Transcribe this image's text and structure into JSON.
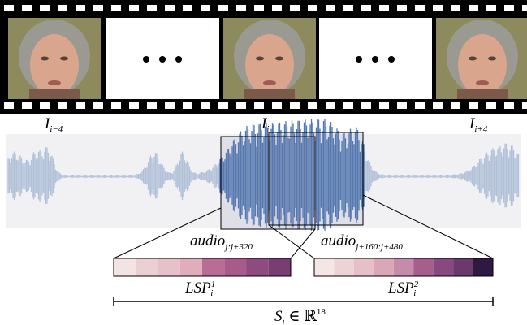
{
  "frames": [
    {
      "base": "I",
      "sub": "i−4"
    },
    {
      "base": "I",
      "sub": "i"
    },
    {
      "base": "I",
      "sub": "i+4"
    }
  ],
  "audio_windows": [
    {
      "base": "audio",
      "sub": "j:j+320"
    },
    {
      "base": "audio",
      "sub": "j+160:j+480"
    }
  ],
  "lsp": [
    {
      "base": "LSP",
      "sub": "i",
      "sup": "1"
    },
    {
      "base": "LSP",
      "sub": "i",
      "sup": "2"
    }
  ],
  "feature": {
    "base": "S",
    "sub": "i",
    "relation": " ∈ ℝ",
    "sup": "18"
  }
}
